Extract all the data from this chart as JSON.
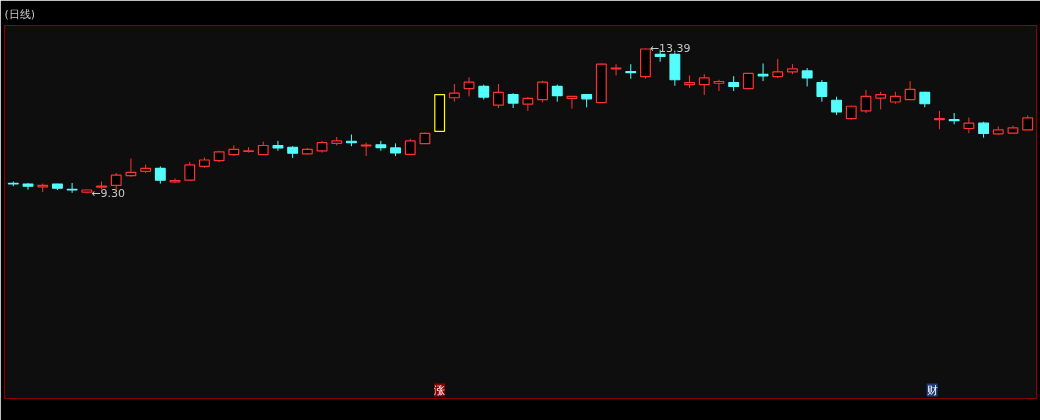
{
  "chart_data": {
    "type": "candlestick",
    "title": "(日线)",
    "categories": [
      null,
      null,
      null,
      null,
      null,
      null,
      null,
      null,
      null,
      null,
      null,
      null,
      null,
      null,
      null,
      null,
      null,
      null,
      null,
      null,
      null,
      null,
      null,
      null,
      null,
      null,
      null,
      null,
      null,
      null,
      null,
      null,
      null,
      null,
      null,
      null,
      null,
      null,
      null,
      null,
      null,
      null,
      null,
      null,
      null,
      null,
      null,
      null,
      null,
      null,
      null,
      null,
      null,
      null,
      null,
      null,
      null,
      null,
      null,
      null,
      null,
      null,
      null,
      null,
      null,
      null,
      null,
      null,
      null,
      null
    ],
    "ohlc": [
      [
        9.58,
        9.63,
        9.5,
        9.57
      ],
      [
        9.56,
        9.59,
        9.4,
        9.5
      ],
      [
        9.48,
        9.57,
        9.33,
        9.52
      ],
      [
        9.56,
        9.57,
        9.39,
        9.44
      ],
      [
        9.41,
        9.59,
        9.31,
        9.39
      ],
      [
        9.33,
        9.4,
        9.3,
        9.39
      ],
      [
        9.47,
        9.63,
        9.41,
        9.5
      ],
      [
        9.52,
        9.87,
        9.41,
        9.81
      ],
      [
        9.8,
        10.28,
        9.76,
        9.89
      ],
      [
        9.92,
        10.11,
        9.87,
        10.0
      ],
      [
        10.0,
        10.06,
        9.57,
        9.67
      ],
      [
        9.62,
        9.72,
        9.59,
        9.66
      ],
      [
        9.67,
        10.18,
        9.65,
        10.1
      ],
      [
        10.06,
        10.31,
        10.02,
        10.24
      ],
      [
        10.22,
        10.5,
        10.18,
        10.47
      ],
      [
        10.39,
        10.65,
        10.35,
        10.54
      ],
      [
        10.48,
        10.6,
        10.45,
        10.5
      ],
      [
        10.39,
        10.76,
        10.38,
        10.65
      ],
      [
        10.65,
        10.78,
        10.5,
        10.58
      ],
      [
        10.6,
        10.63,
        10.3,
        10.43
      ],
      [
        10.41,
        10.58,
        10.4,
        10.54
      ],
      [
        10.5,
        10.78,
        10.45,
        10.73
      ],
      [
        10.71,
        10.89,
        10.65,
        10.78
      ],
      [
        10.77,
        10.96,
        10.63,
        10.73
      ],
      [
        10.64,
        10.73,
        10.35,
        10.66
      ],
      [
        10.67,
        10.78,
        10.5,
        10.59
      ],
      [
        10.58,
        10.71,
        10.35,
        10.44
      ],
      [
        10.4,
        10.84,
        10.39,
        10.78
      ],
      [
        10.7,
        11.02,
        10.69,
        10.99
      ],
      [
        11.05,
        12.09,
        11.05,
        12.09
      ],
      [
        12.0,
        12.39,
        11.89,
        12.13
      ],
      [
        12.26,
        12.58,
        12.04,
        12.44
      ],
      [
        12.32,
        12.37,
        11.95,
        12.02
      ],
      [
        11.79,
        12.39,
        11.71,
        12.15
      ],
      [
        12.09,
        12.13,
        11.71,
        11.85
      ],
      [
        11.82,
        12.02,
        11.63,
        11.98
      ],
      [
        11.95,
        12.48,
        11.87,
        12.44
      ],
      [
        12.32,
        12.37,
        11.89,
        12.06
      ],
      [
        11.98,
        12.04,
        11.69,
        12.04
      ],
      [
        12.09,
        12.09,
        11.73,
        11.97
      ],
      [
        11.86,
        12.97,
        11.85,
        12.95
      ],
      [
        12.82,
        12.95,
        12.63,
        12.84
      ],
      [
        12.74,
        12.95,
        12.54,
        12.71
      ],
      [
        12.6,
        13.39,
        12.54,
        13.38
      ],
      [
        13.23,
        13.36,
        13.02,
        13.17
      ],
      [
        13.23,
        13.28,
        12.34,
        12.51
      ],
      [
        12.37,
        12.63,
        12.28,
        12.43
      ],
      [
        12.37,
        12.67,
        12.08,
        12.56
      ],
      [
        12.41,
        12.51,
        12.19,
        12.46
      ],
      [
        12.43,
        12.61,
        12.19,
        12.32
      ],
      [
        12.26,
        12.69,
        12.24,
        12.69
      ],
      [
        12.66,
        12.97,
        12.47,
        12.62
      ],
      [
        12.6,
        13.1,
        12.56,
        12.73
      ],
      [
        12.73,
        12.95,
        12.67,
        12.82
      ],
      [
        12.76,
        12.84,
        12.32,
        12.56
      ],
      [
        12.43,
        12.5,
        11.89,
        12.04
      ],
      [
        11.93,
        12.03,
        11.51,
        11.6
      ],
      [
        11.41,
        11.78,
        11.38,
        11.76
      ],
      [
        11.63,
        12.22,
        11.57,
        12.04
      ],
      [
        11.99,
        12.17,
        11.67,
        12.09
      ],
      [
        11.88,
        12.17,
        11.83,
        12.04
      ],
      [
        11.95,
        12.47,
        11.94,
        12.24
      ],
      [
        12.15,
        12.17,
        11.73,
        11.83
      ],
      [
        11.38,
        11.63,
        11.11,
        11.41
      ],
      [
        11.38,
        11.57,
        11.25,
        11.35
      ],
      [
        11.13,
        11.44,
        11.0,
        11.28
      ],
      [
        11.28,
        11.32,
        10.87,
        10.99
      ],
      [
        10.98,
        11.19,
        10.95,
        11.09
      ],
      [
        11.0,
        11.21,
        10.99,
        11.15
      ],
      [
        11.09,
        11.5,
        11.08,
        11.43
      ]
    ],
    "colors": [
      "#54fcfc",
      "#54fcfc",
      "#ff3232",
      "#54fcfc",
      "#54fcfc",
      "#ff3232",
      "#ff3232",
      "#ff3232",
      "#ff3232",
      "#ff3232",
      "#54fcfc",
      "#ff3232",
      "#ff3232",
      "#ff3232",
      "#ff3232",
      "#ff3232",
      "#ff3232",
      "#ff3232",
      "#54fcfc",
      "#54fcfc",
      "#ff3232",
      "#ff3232",
      "#ff3232",
      "#54fcfc",
      "#ff3232",
      "#54fcfc",
      "#54fcfc",
      "#ff3232",
      "#ff3232",
      "#ffff00",
      "#ff3232",
      "#ff3232",
      "#54fcfc",
      "#ff3232",
      "#54fcfc",
      "#ff3232",
      "#ff3232",
      "#54fcfc",
      "#ff3232",
      "#54fcfc",
      "#ff3232",
      "#ff3232",
      "#54fcfc",
      "#ff3232",
      "#54fcfc",
      "#54fcfc",
      "#ff3232",
      "#ff3232",
      "#ff3232",
      "#54fcfc",
      "#ff3232",
      "#54fcfc",
      "#ff3232",
      "#ff3232",
      "#54fcfc",
      "#54fcfc",
      "#54fcfc",
      "#ff3232",
      "#ff3232",
      "#ff3232",
      "#ff3232",
      "#ff3232",
      "#54fcfc",
      "#ff3232",
      "#54fcfc",
      "#ff3232",
      "#54fcfc",
      "#ff3232",
      "#ff3232",
      "#ff3232"
    ],
    "annotations": [
      "←9.30",
      "←13.39",
      "涨",
      "财"
    ],
    "tick_labels": false
  }
}
